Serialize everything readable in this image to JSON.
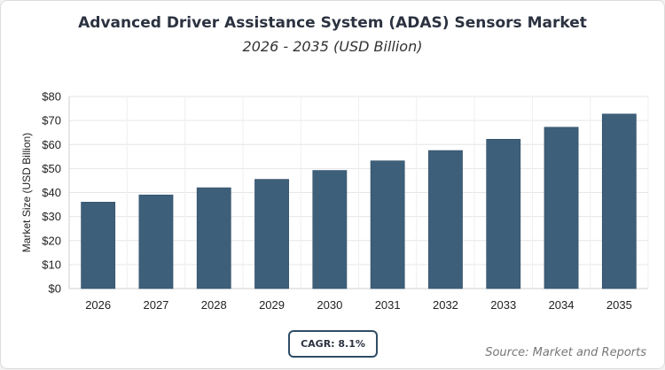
{
  "chart_data": {
    "type": "bar",
    "title": "Advanced Driver Assistance System (ADAS) Sensors Market",
    "subtitle": "2026 - 2035 (USD Billion)",
    "categories": [
      "2026",
      "2027",
      "2028",
      "2029",
      "2030",
      "2031",
      "2032",
      "2033",
      "2034",
      "2035"
    ],
    "values": [
      36,
      39,
      42,
      45.5,
      49.2,
      53.2,
      57.5,
      62.2,
      67.2,
      72.7
    ],
    "ylabel": "Market Size (USD Billion)",
    "xlabel": "",
    "ylim": [
      0,
      80
    ],
    "yticks": [
      0,
      10,
      20,
      30,
      40,
      50,
      60,
      70,
      80
    ],
    "ytick_labels": [
      "$0",
      "$10",
      "$20",
      "$30",
      "$40",
      "$50",
      "$60",
      "$70",
      "$80"
    ],
    "grid": true,
    "bar_color": "#3d5f7a"
  },
  "annotations": {
    "cagr": "CAGR: 8.1%",
    "source": "Source: Market and Reports"
  }
}
